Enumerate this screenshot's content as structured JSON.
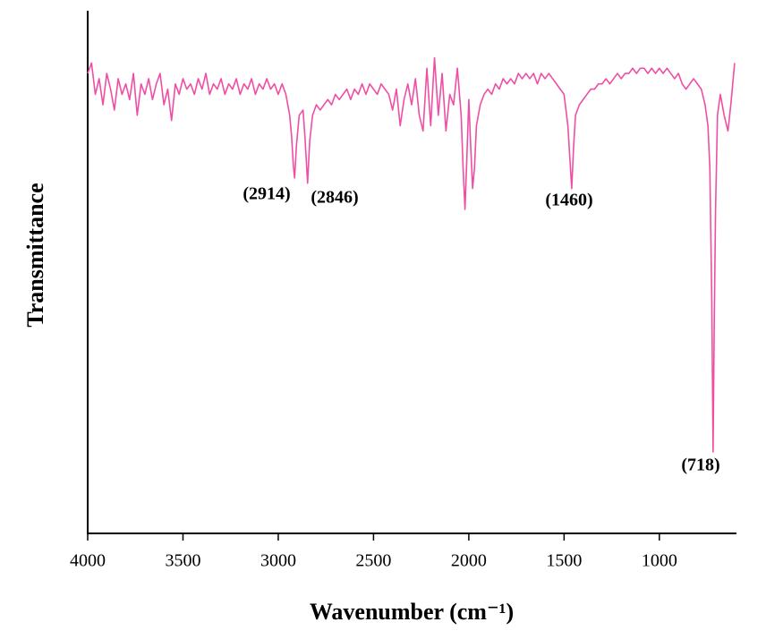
{
  "chart_data": {
    "type": "line",
    "x_label": "Wavenumber (cm⁻¹)",
    "y_label": "Transmittance",
    "xlim": [
      4000,
      600
    ],
    "ylim": [
      0,
      100
    ],
    "xticks": [
      4000,
      3500,
      3000,
      2500,
      2000,
      1500,
      1000
    ],
    "annotations": [
      "(2914)",
      "(2846)",
      "(1460)",
      "(718)"
    ],
    "series": [
      {
        "color": "#ee4fa5",
        "x": [
          4000,
          3980,
          3960,
          3940,
          3920,
          3900,
          3880,
          3860,
          3840,
          3820,
          3800,
          3780,
          3760,
          3740,
          3720,
          3700,
          3680,
          3660,
          3640,
          3620,
          3600,
          3580,
          3560,
          3540,
          3520,
          3500,
          3480,
          3460,
          3440,
          3420,
          3400,
          3380,
          3360,
          3340,
          3320,
          3300,
          3280,
          3260,
          3240,
          3220,
          3200,
          3180,
          3160,
          3140,
          3120,
          3100,
          3080,
          3060,
          3040,
          3020,
          3000,
          2980,
          2960,
          2940,
          2930,
          2920,
          2914,
          2905,
          2890,
          2870,
          2860,
          2846,
          2835,
          2820,
          2800,
          2780,
          2760,
          2740,
          2720,
          2700,
          2680,
          2660,
          2640,
          2620,
          2600,
          2580,
          2560,
          2540,
          2520,
          2500,
          2480,
          2460,
          2440,
          2420,
          2400,
          2380,
          2360,
          2340,
          2320,
          2300,
          2280,
          2260,
          2240,
          2220,
          2200,
          2180,
          2160,
          2140,
          2120,
          2100,
          2080,
          2060,
          2040,
          2030,
          2020,
          2010,
          2000,
          1990,
          1980,
          1970,
          1960,
          1940,
          1920,
          1900,
          1880,
          1860,
          1840,
          1820,
          1800,
          1780,
          1760,
          1740,
          1720,
          1700,
          1680,
          1660,
          1640,
          1620,
          1600,
          1580,
          1560,
          1540,
          1520,
          1500,
          1480,
          1470,
          1460,
          1450,
          1440,
          1420,
          1400,
          1380,
          1360,
          1340,
          1320,
          1300,
          1280,
          1260,
          1240,
          1220,
          1200,
          1180,
          1160,
          1140,
          1120,
          1100,
          1080,
          1060,
          1040,
          1020,
          1000,
          980,
          960,
          940,
          920,
          900,
          880,
          860,
          840,
          820,
          800,
          780,
          760,
          745,
          735,
          725,
          718,
          712,
          705,
          695,
          680,
          660,
          640,
          625,
          615,
          605
        ],
        "values": [
          88,
          90,
          84,
          87,
          82,
          88,
          85,
          81,
          87,
          84,
          86,
          83,
          88,
          80,
          86,
          84,
          87,
          83,
          86,
          88,
          82,
          85,
          79,
          86,
          84,
          87,
          85,
          86,
          84,
          87,
          85,
          88,
          84,
          86,
          85,
          87,
          84,
          86,
          85,
          87,
          84,
          86,
          85,
          87,
          84,
          86,
          85,
          87,
          85,
          86,
          84,
          86,
          84,
          80,
          76,
          70,
          68,
          74,
          80,
          81,
          76,
          67,
          75,
          80,
          82,
          81,
          82,
          83,
          82,
          84,
          83,
          84,
          85,
          83,
          85,
          84,
          86,
          84,
          86,
          85,
          84,
          86,
          85,
          84,
          81,
          85,
          78,
          83,
          86,
          82,
          87,
          80,
          77,
          89,
          78,
          91,
          80,
          88,
          77,
          84,
          82,
          89,
          80,
          70,
          62,
          72,
          83,
          74,
          66,
          70,
          78,
          82,
          84,
          85,
          84,
          86,
          85,
          87,
          86,
          87,
          86,
          88,
          87,
          88,
          87,
          88,
          86,
          88,
          87,
          88,
          87,
          86,
          85,
          84,
          78,
          72,
          66,
          74,
          80,
          82,
          83,
          84,
          85,
          85,
          86,
          86,
          87,
          86,
          87,
          88,
          87,
          88,
          88,
          89,
          88,
          89,
          89,
          88,
          89,
          88,
          89,
          88,
          89,
          88,
          87,
          88,
          86,
          85,
          86,
          87,
          86,
          85,
          82,
          78,
          70,
          45,
          15.6,
          40,
          62,
          80,
          84,
          80,
          77,
          82,
          86,
          90
        ]
      }
    ]
  }
}
